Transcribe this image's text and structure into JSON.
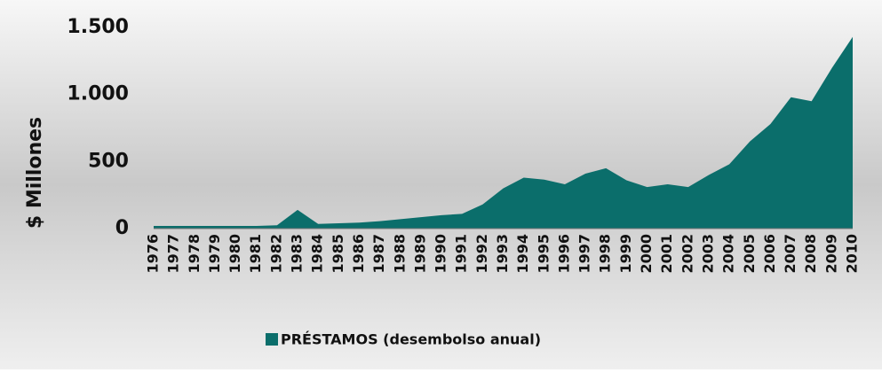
{
  "chart_data": {
    "type": "area",
    "categories": [
      "1976",
      "1977",
      "1978",
      "1979",
      "1980",
      "1981",
      "1982",
      "1983",
      "1984",
      "1985",
      "1986",
      "1987",
      "1988",
      "1989",
      "1990",
      "1991",
      "1992",
      "1993",
      "1994",
      "1995",
      "1996",
      "1997",
      "1998",
      "1999",
      "2000",
      "2001",
      "2002",
      "2003",
      "2004",
      "2005",
      "2006",
      "2007",
      "2008",
      "2009",
      "2010"
    ],
    "series": [
      {
        "name": "PRÉSTAMOS (desembolso anual)",
        "color": "#0b6e6b",
        "values": [
          20,
          20,
          20,
          20,
          20,
          20,
          25,
          140,
          35,
          40,
          45,
          55,
          70,
          85,
          100,
          110,
          180,
          300,
          380,
          365,
          330,
          410,
          450,
          360,
          310,
          330,
          310,
          400,
          480,
          650,
          780,
          980,
          950,
          1200,
          1430
        ]
      }
    ],
    "y_label": "$ Millones",
    "ylim": [
      0,
      1500
    ],
    "yticks": [
      0,
      500,
      {
        "value": 1000,
        "label": "1.000"
      },
      {
        "value": 1500,
        "label": "1.500"
      }
    ],
    "legend": "bottom"
  }
}
